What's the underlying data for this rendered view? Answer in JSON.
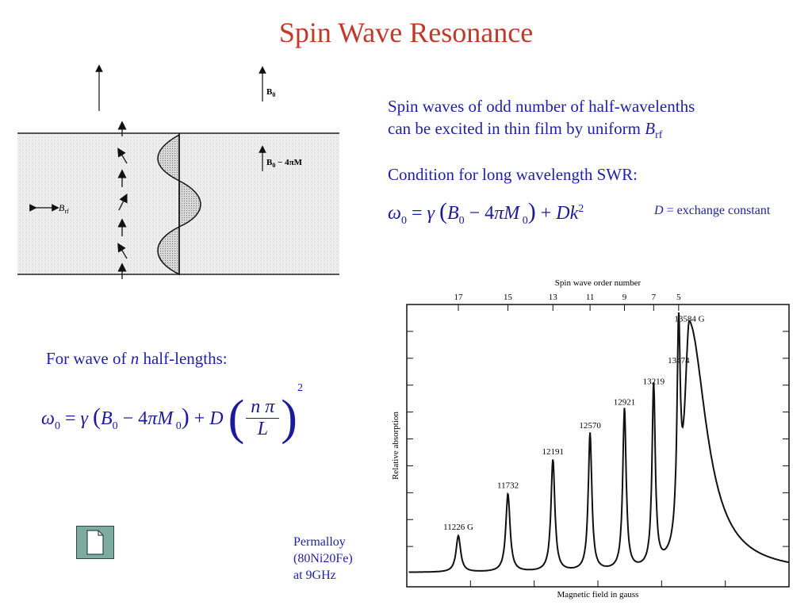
{
  "slide": {
    "title": "Spin Wave Resonance",
    "description_line1": "Spin waves of odd number of half-wavelenths",
    "description_line2_prefix": "can be excited in thin film by uniform ",
    "description_line2_var": "B",
    "description_line2_sub": "rf",
    "condition_label": "Condition for long wavelength SWR:",
    "note_var": "D",
    "note_text": " = exchange constant",
    "wave_label_prefix": "For wave of ",
    "wave_label_var": "n",
    "wave_label_suffix": " half-lengths:",
    "sample_line1": "Permalloy",
    "sample_line2": "(80Ni20Fe)",
    "sample_line3": "at 9GHz"
  },
  "film_diagram": {
    "field_label": "B",
    "field_sub": "0",
    "internal_field_label": "B",
    "internal_field_sub": "0",
    "internal_field_rest": " − 4πM",
    "rf_label": "B",
    "rf_sub": "rf"
  },
  "chart_data": {
    "type": "line",
    "title": "Spin wave order number",
    "xlabel": "Magnetic field in gauss",
    "ylabel": "Relative absorption",
    "top_axis_ticks": [
      "17",
      "15",
      "13",
      "11",
      "9",
      "7",
      "5"
    ],
    "peaks": [
      {
        "label": "11226 G",
        "field": 11226,
        "height": 0.14
      },
      {
        "label": "11732",
        "field": 11732,
        "height": 0.3
      },
      {
        "label": "12191",
        "field": 12191,
        "height": 0.43
      },
      {
        "label": "12570",
        "field": 12570,
        "height": 0.53
      },
      {
        "label": "12921",
        "field": 12921,
        "height": 0.62
      },
      {
        "label": "13219",
        "field": 13219,
        "height": 0.7
      },
      {
        "label": "13474",
        "field": 13474,
        "height": 0.78
      },
      {
        "label": "13584 G",
        "field": 13584,
        "height": 0.94
      }
    ],
    "grid": false
  }
}
